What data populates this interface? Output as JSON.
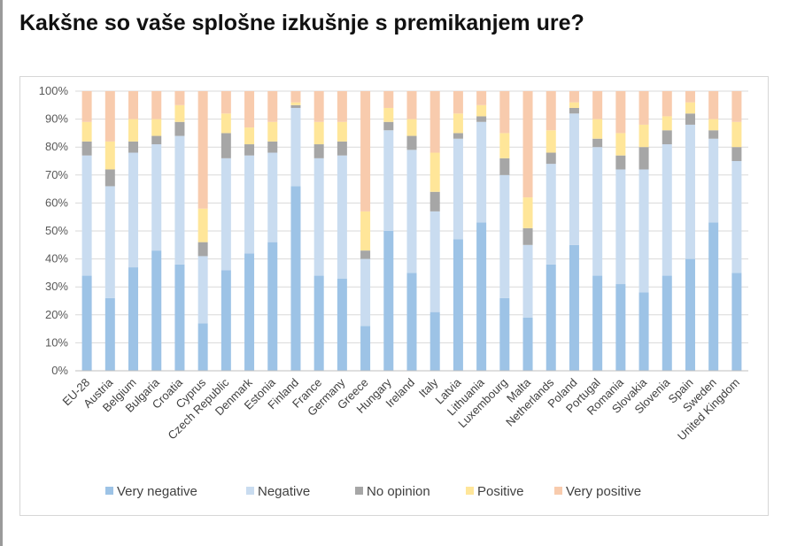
{
  "title": "Kakšne so vaše splošne izkušnje s premikanjem ure?",
  "chart_data": {
    "type": "bar",
    "stacked": true,
    "categories": [
      "EU-28",
      "Austria",
      "Belgium",
      "Bulgaria",
      "Croatia",
      "Cyprus",
      "Czech Republic",
      "Denmark",
      "Estonia",
      "Finland",
      "France",
      "Germany",
      "Greece",
      "Hungary",
      "Ireland",
      "Italy",
      "Latvia",
      "Lithuania",
      "Luxembourg",
      "Malta",
      "Netherlands",
      "Poland",
      "Portugal",
      "Romania",
      "Slovakia",
      "Slovenia",
      "Spain",
      "Sweden",
      "United Kingdom"
    ],
    "series": [
      {
        "name": "Very negative",
        "color": "#9dc3e6",
        "values": [
          34,
          26,
          37,
          43,
          38,
          17,
          36,
          42,
          46,
          66,
          34,
          33,
          16,
          50,
          35,
          21,
          47,
          53,
          26,
          19,
          38,
          45,
          34,
          31,
          28,
          34,
          40,
          53,
          35
        ]
      },
      {
        "name": "Negative",
        "color": "#c9dcf0",
        "values": [
          43,
          40,
          41,
          38,
          46,
          24,
          40,
          35,
          32,
          28,
          42,
          44,
          24,
          36,
          44,
          36,
          36,
          36,
          44,
          26,
          36,
          47,
          46,
          41,
          44,
          47,
          48,
          30,
          40
        ]
      },
      {
        "name": "No opinion",
        "color": "#a6a6a6",
        "values": [
          5,
          6,
          4,
          3,
          5,
          5,
          9,
          4,
          4,
          1,
          5,
          5,
          3,
          3,
          5,
          7,
          2,
          2,
          6,
          6,
          4,
          2,
          3,
          5,
          8,
          5,
          4,
          3,
          5
        ]
      },
      {
        "name": "Positive",
        "color": "#ffe699",
        "values": [
          7,
          10,
          8,
          6,
          6,
          12,
          7,
          6,
          7,
          1,
          8,
          7,
          14,
          5,
          6,
          14,
          7,
          4,
          9,
          11,
          8,
          2,
          7,
          8,
          8,
          5,
          4,
          4,
          9
        ]
      },
      {
        "name": "Very positive",
        "color": "#f8cbad",
        "values": [
          11,
          18,
          10,
          10,
          5,
          42,
          8,
          13,
          11,
          4,
          11,
          11,
          43,
          6,
          10,
          22,
          8,
          5,
          15,
          38,
          14,
          4,
          10,
          15,
          12,
          9,
          4,
          10,
          11
        ]
      }
    ],
    "ylim": [
      0,
      100
    ],
    "yticks": [
      "0%",
      "10%",
      "20%",
      "30%",
      "40%",
      "50%",
      "60%",
      "70%",
      "80%",
      "90%",
      "100%"
    ],
    "xlabel": "",
    "ylabel": "",
    "grid": true,
    "legend_position": "bottom"
  }
}
